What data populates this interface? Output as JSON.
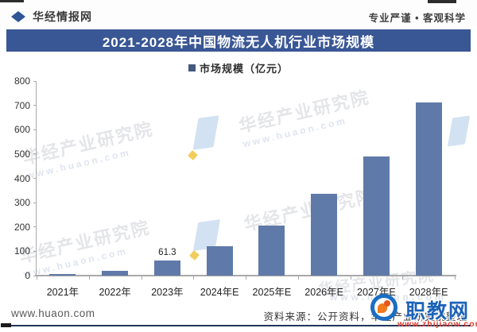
{
  "header": {
    "brand": "华经情报网",
    "slogan": "专业严谨 • 客观科学"
  },
  "title": "2021-2028年中国物流无人机行业市场规模",
  "chart_data": {
    "type": "bar",
    "title": "2021-2028年中国物流无人机行业市场规模",
    "legend": "市场规模（亿元）",
    "categories": [
      "2021年",
      "2022年",
      "2023年",
      "2024年E",
      "2025年E",
      "2026年E",
      "2027年E",
      "2028年E"
    ],
    "values": [
      7.5,
      20,
      61.3,
      120,
      205,
      335,
      490,
      712
    ],
    "data_labels": [
      null,
      null,
      "61.3",
      null,
      null,
      null,
      null,
      null
    ],
    "ylim": [
      0,
      800
    ],
    "yticks": [
      0,
      100,
      200,
      300,
      400,
      500,
      600,
      700,
      800
    ],
    "grid": false,
    "legend_position": "top-center",
    "bar_color": "#5f7aa8",
    "legend_square_color": "#44597e"
  },
  "footer": {
    "site": "www.huaon.com",
    "source": "资料来源：公开资料，华经产业研究院整理"
  },
  "watermark": {
    "org": "华经产业研究院",
    "site": "www.huaon.com",
    "site_spaced": "www.huaon.com",
    "badge_text": "职教网",
    "badge_url": "www.zhijiaow.com"
  }
}
